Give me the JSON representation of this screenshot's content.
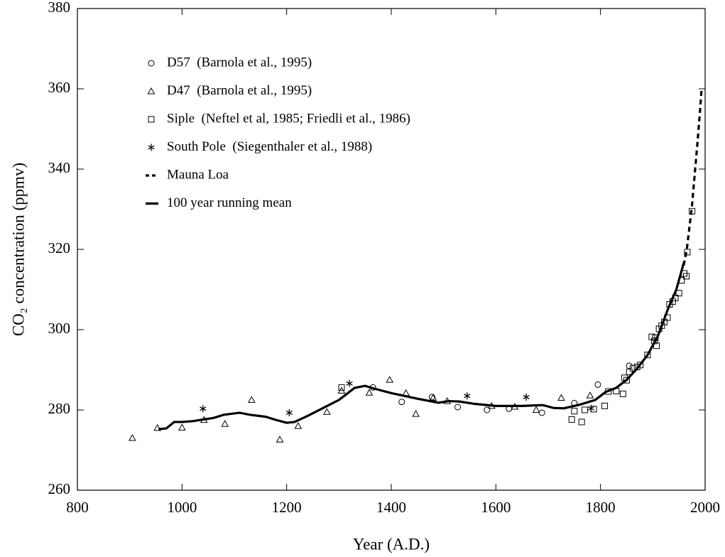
{
  "chart_data": {
    "type": "line",
    "xlabel": "Year (A.D.)",
    "ylabel": "CO₂ concentration (ppmv)",
    "xlim": [
      800,
      2000
    ],
    "xticks": [
      800,
      1000,
      1200,
      1400,
      1600,
      1800,
      2000
    ],
    "ylim": [
      260,
      380
    ],
    "yticks": [
      260,
      280,
      300,
      320,
      340,
      360,
      380
    ],
    "legend": "upper left",
    "series": [
      {
        "name": "D57  (Barnola et al., 1995)",
        "color": "#000000",
        "marker": "circle",
        "x": [
          1365,
          1420,
          1478,
          1527,
          1583,
          1625,
          1688,
          1750,
          1795,
          1855
        ],
        "values": [
          285.6,
          282,
          283.2,
          280.7,
          280,
          280.3,
          279.3,
          281.7,
          286.3,
          291
        ]
      },
      {
        "name": "D47  (Barnola et al., 1995)",
        "color": "#000000",
        "marker": "triangle",
        "x": [
          905,
          953,
          1000,
          1042,
          1082,
          1133,
          1187,
          1222,
          1277,
          1305,
          1358,
          1397,
          1428,
          1447,
          1480,
          1507,
          1592,
          1636,
          1677,
          1725,
          1780
        ],
        "values": [
          273,
          275.5,
          275.6,
          277.5,
          276.5,
          282.5,
          272.6,
          276,
          279.5,
          284.8,
          284.3,
          287.5,
          284.2,
          279,
          283,
          282.2,
          281,
          280.8,
          280,
          283,
          283.6
        ]
      },
      {
        "name": "Siple  (Neftel et al, 1985; Friedli et al., 1986)",
        "color": "#000000",
        "marker": "square",
        "x": [
          1305,
          1745,
          1750,
          1764,
          1770,
          1787,
          1808,
          1815,
          1830,
          1843,
          1846,
          1850,
          1855,
          1862,
          1870,
          1876,
          1890,
          1898,
          1903,
          1905,
          1907,
          1912,
          1917,
          1922,
          1928,
          1932,
          1938,
          1943,
          1950,
          1955,
          1960,
          1964,
          1966,
          1975
        ],
        "values": [
          285.6,
          277.6,
          279.7,
          277,
          280,
          280.2,
          281,
          284.6,
          284.7,
          284,
          288,
          287.4,
          289.5,
          290.4,
          290.7,
          291.2,
          293.7,
          298.2,
          297.2,
          298,
          296,
          300.2,
          301,
          301.9,
          303,
          306.3,
          307,
          307.9,
          309.1,
          312.3,
          314,
          313.3,
          319.3,
          329.5
        ]
      },
      {
        "name": "South Pole  (Siegenthaler et al., 1988)",
        "color": "#000000",
        "marker": "asterisk",
        "x": [
          1040,
          1205,
          1320,
          1545,
          1658,
          1782
        ],
        "values": [
          280.3,
          279.3,
          286.6,
          283.5,
          283.2,
          280.4
        ]
      },
      {
        "name": "Mauna Loa",
        "color": "#000000",
        "line": "dashed",
        "x": [
          1959,
          1965,
          1970,
          1975,
          1980,
          1985,
          1990,
          1993
        ],
        "values": [
          316,
          320,
          325.5,
          331,
          338.5,
          346,
          354,
          359.5
        ]
      },
      {
        "name": "100 year running mean",
        "color": "#000000",
        "line": "solid",
        "x": [
          955,
          970,
          985,
          1000,
          1020,
          1040,
          1060,
          1080,
          1110,
          1130,
          1160,
          1180,
          1200,
          1215,
          1240,
          1270,
          1300,
          1330,
          1350,
          1365,
          1400,
          1450,
          1490,
          1510,
          1530,
          1560,
          1600,
          1650,
          1690,
          1710,
          1730,
          1760,
          1790,
          1810,
          1830,
          1850,
          1870,
          1890,
          1910,
          1930,
          1945,
          1960
        ],
        "values": [
          275.2,
          275.4,
          277,
          277,
          277.2,
          277.6,
          278,
          278.8,
          279.3,
          278.8,
          278.3,
          277.5,
          276.8,
          277,
          278.5,
          280.5,
          282.5,
          285.5,
          286,
          285.4,
          284.2,
          282.8,
          281.8,
          282.2,
          282.1,
          281.5,
          281,
          281,
          281.2,
          280.5,
          280.4,
          281.3,
          282.5,
          284.5,
          285.5,
          287.5,
          290.3,
          293.7,
          298.5,
          305.5,
          310,
          317
        ]
      }
    ]
  }
}
